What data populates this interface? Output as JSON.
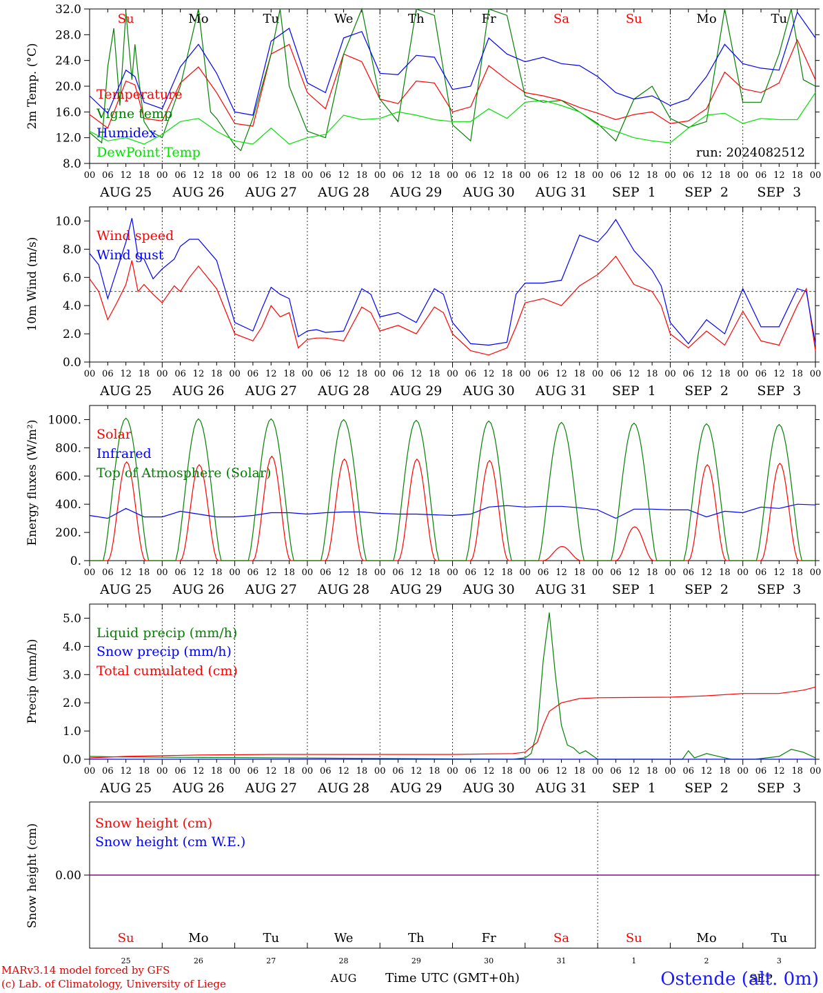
{
  "footer": {
    "model_line": "MARv3.14 model forced by GFS",
    "credit_line": "(c) Lab. of Climatology, University of Liege",
    "station": "Ostende (alt. 0m)",
    "time_axis_label": "Time UTC (GMT+0h)",
    "month_label_1": "AUG",
    "month_label_2": "SEP"
  },
  "colors": {
    "red": "#ff0000",
    "blue": "#0000ff",
    "green": "#008000",
    "light_green": "#00e000",
    "purple": "#800080",
    "axis": "#000000"
  },
  "chart_data": [
    {
      "type": "line",
      "panel": "temperature",
      "ylabel": "2m Temp. (°C)",
      "ylim": [
        8.0,
        32.0
      ],
      "yticks": [
        "8.0",
        "12.0",
        "16.0",
        "20.0",
        "24.0",
        "28.0",
        "32.0"
      ],
      "hour_ticks": [
        "00",
        "06",
        "12",
        "18"
      ],
      "date_labels": [
        "AUG 25",
        "AUG 26",
        "AUG 27",
        "AUG 28",
        "AUG 29",
        "AUG 30",
        "AUG 31",
        "SEP  1",
        "SEP  2",
        "SEP  3"
      ],
      "day_names": [
        "Su",
        "Mo",
        "Tu",
        "We",
        "Th",
        "Fr",
        "Sa",
        "Su",
        "Mo",
        "Tu"
      ],
      "day_name_colors": [
        "red",
        "black",
        "black",
        "black",
        "black",
        "black",
        "red",
        "red",
        "black",
        "black"
      ],
      "annotation": "run: 2024082512",
      "x_unit": "hours since AUG 25 00 UTC",
      "series": [
        {
          "name": "Temperature",
          "color": "red",
          "x": [
            0,
            6,
            12,
            15,
            18,
            24,
            30,
            36,
            42,
            48,
            54,
            60,
            66,
            72,
            78,
            84,
            90,
            96,
            102,
            108,
            114,
            120,
            126,
            132,
            138,
            144,
            150,
            156,
            162,
            168,
            174,
            180,
            186,
            192,
            198,
            204,
            210,
            216,
            222,
            228,
            234,
            240
          ],
          "y": [
            15.6,
            13.5,
            20.8,
            20.2,
            15.0,
            14.6,
            20.5,
            23.0,
            19.0,
            14.2,
            13.8,
            25.0,
            26.5,
            19.0,
            16.5,
            25.0,
            23.8,
            18.0,
            17.3,
            20.8,
            20.5,
            16.0,
            16.8,
            23.2,
            21.0,
            19.0,
            18.5,
            17.8,
            16.7,
            15.8,
            14.8,
            15.6,
            16.0,
            14.2,
            14.6,
            16.5,
            22.2,
            19.6,
            19.0,
            20.5,
            27.2,
            21.0
          ]
        },
        {
          "name": "Vigne temp",
          "color": "green",
          "x": [
            0,
            4,
            6,
            8,
            10,
            12,
            14,
            15,
            16,
            18,
            20,
            24,
            30,
            36,
            40,
            42,
            48,
            50,
            54,
            60,
            63,
            66,
            72,
            78,
            84,
            90,
            96,
            102,
            108,
            114,
            120,
            126,
            132,
            138,
            144,
            150,
            156,
            162,
            168,
            174,
            180,
            186,
            192,
            198,
            204,
            210,
            216,
            222,
            228,
            232,
            236,
            240
          ],
          "y": [
            12.8,
            11.2,
            23.0,
            29.0,
            17.0,
            31.5,
            21.0,
            26.5,
            22.0,
            14.5,
            13.0,
            12.0,
            20.0,
            32.0,
            16.0,
            15.0,
            10.8,
            10.0,
            15.0,
            25.0,
            32.0,
            20.0,
            13.0,
            12.0,
            25.0,
            32.0,
            18.0,
            14.5,
            32.0,
            31.0,
            14.0,
            11.5,
            32.0,
            31.0,
            18.5,
            17.5,
            17.8,
            16.0,
            14.2,
            11.5,
            18.0,
            20.0,
            15.0,
            13.6,
            14.5,
            32.0,
            17.5,
            17.5,
            25.0,
            32.0,
            21.0,
            20.0
          ]
        },
        {
          "name": "Humidex",
          "color": "blue",
          "x": [
            0,
            6,
            12,
            15,
            18,
            24,
            30,
            36,
            42,
            48,
            54,
            60,
            66,
            72,
            78,
            84,
            90,
            96,
            102,
            108,
            114,
            120,
            126,
            132,
            138,
            144,
            150,
            156,
            162,
            168,
            174,
            180,
            186,
            192,
            198,
            204,
            210,
            216,
            222,
            228,
            234,
            240
          ],
          "y": [
            18.5,
            15.8,
            22.5,
            21.5,
            17.5,
            16.5,
            23.0,
            26.5,
            22.0,
            16.0,
            15.5,
            27.0,
            29.0,
            20.5,
            19.0,
            27.5,
            28.5,
            22.0,
            21.8,
            24.8,
            24.5,
            19.5,
            20.0,
            27.5,
            25.0,
            23.8,
            24.5,
            23.5,
            23.2,
            21.5,
            19.0,
            18.0,
            18.5,
            17.0,
            18.0,
            21.5,
            26.5,
            23.5,
            22.8,
            22.5,
            31.5,
            27.5
          ]
        },
        {
          "name": "DewPoint Temp",
          "color": "light_green",
          "x": [
            0,
            6,
            12,
            18,
            24,
            30,
            36,
            42,
            48,
            54,
            60,
            66,
            72,
            78,
            84,
            90,
            96,
            102,
            108,
            114,
            120,
            126,
            132,
            138,
            144,
            150,
            156,
            162,
            168,
            174,
            180,
            186,
            192,
            198,
            204,
            210,
            216,
            222,
            228,
            234,
            240
          ],
          "y": [
            13.0,
            11.5,
            12.0,
            11.0,
            12.5,
            14.5,
            15.0,
            13.0,
            11.5,
            11.0,
            13.5,
            11.0,
            12.0,
            12.5,
            15.5,
            14.8,
            15.0,
            16.0,
            15.5,
            14.8,
            14.5,
            14.5,
            16.5,
            15.0,
            17.5,
            17.8,
            17.0,
            16.0,
            14.0,
            13.0,
            12.0,
            11.5,
            11.2,
            13.5,
            15.5,
            15.8,
            14.2,
            15.0,
            14.8,
            14.8,
            19.0
          ]
        }
      ]
    },
    {
      "type": "line",
      "panel": "wind",
      "ylabel": "10m Wind (m/s)",
      "ylim": [
        0.0,
        11.0
      ],
      "yticks": [
        "0.0",
        "2.0",
        "4.0",
        "6.0",
        "8.0",
        "10.0"
      ],
      "reference_line": 5.0,
      "date_labels": [
        "AUG 25",
        "AUG 26",
        "AUG 27",
        "AUG 28",
        "AUG 29",
        "AUG 30",
        "AUG 31",
        "SEP  1",
        "SEP  2",
        "SEP  3"
      ],
      "series": [
        {
          "name": "Wind speed",
          "color": "red",
          "x": [
            0,
            3,
            6,
            9,
            12,
            14,
            16,
            18,
            21,
            24,
            28,
            30,
            33,
            36,
            42,
            48,
            54,
            57,
            60,
            63,
            66,
            69,
            72,
            75,
            78,
            84,
            90,
            93,
            96,
            102,
            108,
            114,
            117,
            120,
            126,
            132,
            138,
            141,
            144,
            150,
            156,
            162,
            168,
            171,
            174,
            180,
            186,
            189,
            192,
            198,
            204,
            210,
            216,
            222,
            228,
            234,
            237,
            240
          ],
          "y": [
            5.9,
            5.0,
            3.0,
            4.2,
            5.5,
            7.2,
            5.0,
            5.5,
            4.8,
            4.2,
            5.4,
            5.0,
            6.0,
            6.8,
            5.2,
            2.0,
            1.5,
            2.5,
            4.0,
            3.2,
            3.5,
            1.0,
            1.6,
            1.7,
            1.7,
            1.5,
            3.9,
            3.5,
            2.2,
            2.6,
            2.0,
            3.9,
            3.5,
            2.0,
            0.8,
            0.5,
            1.0,
            2.5,
            4.2,
            4.5,
            4.0,
            5.4,
            6.2,
            6.8,
            7.5,
            5.5,
            5.0,
            4.0,
            2.0,
            1.0,
            2.2,
            1.2,
            3.6,
            1.5,
            1.2,
            4.0,
            5.2,
            0.8
          ]
        },
        {
          "name": "Wind gust",
          "color": "blue",
          "x": [
            0,
            3,
            6,
            9,
            12,
            14,
            16,
            18,
            21,
            24,
            28,
            30,
            33,
            36,
            42,
            48,
            54,
            57,
            60,
            63,
            66,
            69,
            72,
            75,
            78,
            84,
            90,
            93,
            96,
            102,
            108,
            114,
            117,
            120,
            126,
            132,
            138,
            141,
            144,
            150,
            156,
            162,
            168,
            171,
            174,
            180,
            186,
            189,
            192,
            198,
            204,
            210,
            216,
            222,
            228,
            234,
            237,
            240
          ],
          "y": [
            7.7,
            6.9,
            4.5,
            6.5,
            8.5,
            10.2,
            7.5,
            7.3,
            5.9,
            6.6,
            7.3,
            8.2,
            8.7,
            8.7,
            7.2,
            2.8,
            2.2,
            3.8,
            5.3,
            4.8,
            4.5,
            1.8,
            2.2,
            2.3,
            2.1,
            2.2,
            5.2,
            4.8,
            3.2,
            3.5,
            2.8,
            5.2,
            4.8,
            2.8,
            1.3,
            1.2,
            1.4,
            4.8,
            5.6,
            5.6,
            5.8,
            9.0,
            8.5,
            9.2,
            10.1,
            7.9,
            6.5,
            5.4,
            2.8,
            1.3,
            3.0,
            2.0,
            5.2,
            2.5,
            2.5,
            5.2,
            5.0,
            1.3
          ]
        }
      ]
    },
    {
      "type": "line",
      "panel": "energy",
      "ylabel": "Energy fluxes (W/m²)",
      "ylim": [
        0,
        1100
      ],
      "yticks": [
        "0.",
        "200.",
        "400.",
        "600.",
        "800.",
        "1000."
      ],
      "date_labels": [
        "AUG 25",
        "AUG 26",
        "AUG 27",
        "AUG 28",
        "AUG 29",
        "AUG 30",
        "AUG 31",
        "SEP  1",
        "SEP  2",
        "SEP  3"
      ],
      "series": [
        {
          "name": "Solar",
          "color": "red",
          "daily_peak": [
            700,
            680,
            740,
            720,
            720,
            710,
            100,
            240,
            680,
            690
          ]
        },
        {
          "name": "Infrared",
          "color": "blue",
          "x": [
            0,
            6,
            12,
            18,
            24,
            30,
            36,
            42,
            48,
            54,
            60,
            66,
            72,
            78,
            84,
            90,
            96,
            102,
            108,
            114,
            120,
            126,
            132,
            138,
            144,
            150,
            156,
            162,
            168,
            174,
            180,
            186,
            192,
            198,
            204,
            210,
            216,
            222,
            228,
            234,
            240
          ],
          "y": [
            320,
            300,
            370,
            310,
            310,
            350,
            330,
            310,
            310,
            320,
            340,
            340,
            330,
            340,
            345,
            345,
            335,
            330,
            330,
            325,
            320,
            330,
            380,
            390,
            380,
            385,
            385,
            375,
            360,
            300,
            365,
            365,
            360,
            360,
            310,
            350,
            340,
            380,
            370,
            400,
            395
          ]
        },
        {
          "name": "Top of Atmosphere (Solar)",
          "color": "green",
          "daily_peak": [
            1010,
            1005,
            1005,
            1000,
            995,
            990,
            980,
            975,
            970,
            965
          ]
        }
      ]
    },
    {
      "type": "line",
      "panel": "precip",
      "ylabel": "Precip (mm/h)",
      "ylim": [
        0.0,
        5.5
      ],
      "yticks": [
        "0.0",
        "1.0",
        "2.0",
        "3.0",
        "4.0",
        "5.0"
      ],
      "date_labels": [
        "AUG 25",
        "AUG 26",
        "AUG 27",
        "AUG 28",
        "AUG 29",
        "AUG 30",
        "AUG 31",
        "SEP  1",
        "SEP  2",
        "SEP  3"
      ],
      "series": [
        {
          "name": "Liquid precip (mm/h)",
          "color": "green",
          "x": [
            0,
            10,
            140,
            144,
            146,
            148,
            150,
            152,
            154,
            156,
            158,
            160,
            162,
            164,
            168,
            180,
            196,
            198,
            200,
            204,
            208,
            212,
            220,
            228,
            232,
            236,
            240
          ],
          "y": [
            0.1,
            0.08,
            0.0,
            0.05,
            0.2,
            1.0,
            3.5,
            5.2,
            3.0,
            1.2,
            0.5,
            0.4,
            0.2,
            0.3,
            0.0,
            0.0,
            0.0,
            0.3,
            0.05,
            0.2,
            0.1,
            0.0,
            0.0,
            0.1,
            0.35,
            0.25,
            0.05
          ]
        },
        {
          "name": "Snow precip (mm/h)",
          "color": "blue",
          "x": [
            0,
            240
          ],
          "y": [
            0.0,
            0.0
          ]
        },
        {
          "name": "Total cumulated (cm)",
          "color": "red",
          "x": [
            0,
            12,
            36,
            60,
            120,
            140,
            144,
            148,
            150,
            152,
            156,
            162,
            168,
            192,
            204,
            216,
            228,
            236,
            240
          ],
          "y": [
            0.05,
            0.1,
            0.15,
            0.17,
            0.17,
            0.2,
            0.25,
            0.6,
            1.2,
            1.7,
            2.0,
            2.15,
            2.18,
            2.2,
            2.25,
            2.33,
            2.33,
            2.45,
            2.56
          ]
        }
      ]
    },
    {
      "type": "line",
      "panel": "snow",
      "ylabel": "Snow height (cm)",
      "yticks": [
        "0.00"
      ],
      "day_names": [
        "Su",
        "Mo",
        "Tu",
        "We",
        "Th",
        "Fr",
        "Sa",
        "Su",
        "Mo",
        "Tu"
      ],
      "day_name_colors": [
        "red",
        "black",
        "black",
        "black",
        "black",
        "black",
        "red",
        "red",
        "black",
        "black"
      ],
      "day_numbers": [
        "25",
        "26",
        "27",
        "28",
        "29",
        "30",
        "31",
        "1",
        "2",
        "3"
      ],
      "series": [
        {
          "name": "Snow height (cm)",
          "color": "red",
          "x": [
            0,
            240
          ],
          "y": [
            0,
            0
          ]
        },
        {
          "name": "Snow height (cm W.E.)",
          "color": "blue",
          "x": [
            0,
            240
          ],
          "y": [
            0,
            0
          ]
        }
      ]
    }
  ]
}
